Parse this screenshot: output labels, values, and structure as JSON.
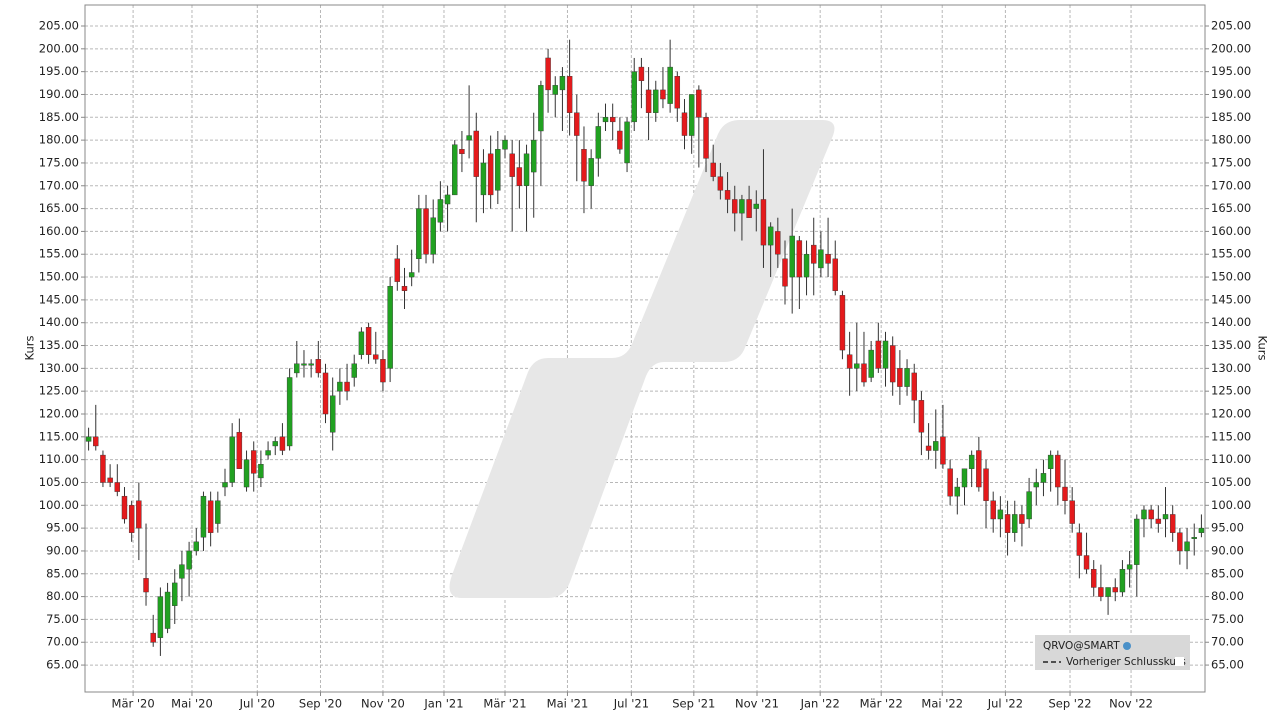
{
  "chart_data": {
    "type": "candlestick",
    "ylabel": "Kurs",
    "legend": {
      "entries": [
        "QRVO@SMART",
        "Vorheriger Schlusskurs"
      ],
      "position": "lower right"
    },
    "up_color": "#21a121",
    "down_color": "#e41a1c",
    "grid": true,
    "ylim": [
      59.1,
      209.6
    ],
    "yticks": [
      {
        "value": 65,
        "label": "65.00"
      },
      {
        "value": 70,
        "label": "70.00"
      },
      {
        "value": 75,
        "label": "75.00"
      },
      {
        "value": 80,
        "label": "80.00"
      },
      {
        "value": 85,
        "label": "85.00"
      },
      {
        "value": 90,
        "label": "90.00"
      },
      {
        "value": 95,
        "label": "95.00"
      },
      {
        "value": 100,
        "label": "100.00"
      },
      {
        "value": 105,
        "label": "105.00"
      },
      {
        "value": 110,
        "label": "110.00"
      },
      {
        "value": 115,
        "label": "115.00"
      },
      {
        "value": 120,
        "label": "120.00"
      },
      {
        "value": 125,
        "label": "125.00"
      },
      {
        "value": 130,
        "label": "130.00"
      },
      {
        "value": 135,
        "label": "135.00"
      },
      {
        "value": 140,
        "label": "140.00"
      },
      {
        "value": 145,
        "label": "145.00"
      },
      {
        "value": 150,
        "label": "150.00"
      },
      {
        "value": 155,
        "label": "155.00"
      },
      {
        "value": 160,
        "label": "160.00"
      },
      {
        "value": 165,
        "label": "165.00"
      },
      {
        "value": 170,
        "label": "170.00"
      },
      {
        "value": 175,
        "label": "175.00"
      },
      {
        "value": 180,
        "label": "180.00"
      },
      {
        "value": 185,
        "label": "185.00"
      },
      {
        "value": 190,
        "label": "190.00"
      },
      {
        "value": 195,
        "label": "195.00"
      },
      {
        "value": 200,
        "label": "200.00"
      },
      {
        "value": 205,
        "label": "205.00"
      }
    ],
    "xlim": [
      -0.5,
      155.5
    ],
    "xticks": [
      {
        "value": 6.2,
        "label": "Mär '20"
      },
      {
        "value": 14.4,
        "label": "Mai '20"
      },
      {
        "value": 23.5,
        "label": "Jul '20"
      },
      {
        "value": 32.3,
        "label": "Sep '20"
      },
      {
        "value": 41.0,
        "label": "Nov '20"
      },
      {
        "value": 49.5,
        "label": "Jan '21"
      },
      {
        "value": 58.0,
        "label": "Mär '21"
      },
      {
        "value": 66.7,
        "label": "Mai '21"
      },
      {
        "value": 75.6,
        "label": "Jul '21"
      },
      {
        "value": 84.3,
        "label": "Sep '21"
      },
      {
        "value": 93.1,
        "label": "Nov '21"
      },
      {
        "value": 101.9,
        "label": "Jan '22"
      },
      {
        "value": 110.4,
        "label": "Mär '22"
      },
      {
        "value": 118.9,
        "label": "Mai '22"
      },
      {
        "value": 127.7,
        "label": "Jul '22"
      },
      {
        "value": 136.7,
        "label": "Sep '22"
      },
      {
        "value": 145.2,
        "label": "Nov '22"
      }
    ],
    "ohlc": [
      [
        114,
        117,
        112,
        115
      ],
      [
        115,
        122,
        112,
        113
      ],
      [
        111,
        112,
        104,
        105
      ],
      [
        106,
        109,
        104,
        105
      ],
      [
        105,
        109,
        102,
        103
      ],
      [
        102,
        104,
        96,
        97
      ],
      [
        100,
        101,
        92,
        94
      ],
      [
        101,
        105,
        88,
        95
      ],
      [
        84,
        96,
        78,
        81
      ],
      [
        72,
        76,
        69,
        70
      ],
      [
        71,
        82,
        67,
        80
      ],
      [
        73,
        83,
        72,
        81
      ],
      [
        78,
        86,
        74,
        83
      ],
      [
        84,
        90,
        79,
        87
      ],
      [
        86,
        92,
        80,
        90
      ],
      [
        90,
        95,
        89,
        92
      ],
      [
        93,
        103,
        90,
        102
      ],
      [
        101,
        103,
        91,
        94
      ],
      [
        96,
        103,
        94,
        101
      ],
      [
        104,
        108,
        102,
        105
      ],
      [
        105,
        118,
        104,
        115
      ],
      [
        116,
        119,
        108,
        108
      ],
      [
        104,
        112,
        103,
        110
      ],
      [
        112,
        114,
        103,
        107
      ],
      [
        106,
        112,
        104,
        109
      ],
      [
        111,
        114,
        110,
        112
      ],
      [
        113,
        115,
        111,
        114
      ],
      [
        115,
        118,
        111,
        112
      ],
      [
        113,
        130,
        112,
        128
      ],
      [
        129,
        136,
        128,
        131
      ],
      [
        131,
        134,
        128,
        131
      ],
      [
        131,
        132,
        128,
        131
      ],
      [
        132,
        136,
        128,
        129
      ],
      [
        129,
        131,
        118,
        120
      ],
      [
        116,
        128,
        112,
        124
      ],
      [
        125,
        130,
        122,
        127
      ],
      [
        127,
        131,
        123,
        125
      ],
      [
        128,
        133,
        126,
        131
      ],
      [
        133,
        139,
        132,
        138
      ],
      [
        139,
        140,
        131,
        133
      ],
      [
        133,
        138,
        131,
        132
      ],
      [
        132,
        134,
        125,
        127
      ],
      [
        130,
        150,
        127,
        148
      ],
      [
        154,
        157,
        147,
        149
      ],
      [
        148,
        152,
        143,
        147
      ],
      [
        150,
        156,
        148,
        151
      ],
      [
        154,
        168,
        151,
        165
      ],
      [
        165,
        168,
        153,
        155
      ],
      [
        155,
        167,
        153,
        163
      ],
      [
        162,
        171,
        160,
        167
      ],
      [
        166,
        170,
        160,
        168
      ],
      [
        168,
        180,
        168,
        179
      ],
      [
        178,
        182,
        173,
        177
      ],
      [
        180,
        192,
        176,
        181
      ],
      [
        182,
        186,
        162,
        172
      ],
      [
        168,
        178,
        164,
        175
      ],
      [
        177,
        181,
        165,
        168
      ],
      [
        169,
        182,
        166,
        178
      ],
      [
        178,
        181,
        176,
        180
      ],
      [
        177,
        180,
        160,
        172
      ],
      [
        174,
        180,
        165,
        170
      ],
      [
        170,
        179,
        160,
        177
      ],
      [
        173,
        186,
        163,
        180
      ],
      [
        182,
        193,
        170,
        192
      ],
      [
        198,
        200,
        186,
        191
      ],
      [
        190,
        194,
        185,
        192
      ],
      [
        191,
        196,
        182,
        194
      ],
      [
        194,
        202,
        181,
        186
      ],
      [
        186,
        190,
        171,
        181
      ],
      [
        178,
        183,
        164,
        171
      ],
      [
        170,
        178,
        165,
        176
      ],
      [
        176,
        186,
        172,
        183
      ],
      [
        184,
        188,
        182,
        185
      ],
      [
        185,
        188,
        180,
        184
      ],
      [
        182,
        185,
        177,
        178
      ],
      [
        175,
        185,
        173,
        184
      ],
      [
        184,
        198,
        182,
        195
      ],
      [
        196,
        198,
        187,
        193
      ],
      [
        191,
        196,
        180,
        186
      ],
      [
        186,
        193,
        184,
        191
      ],
      [
        191,
        196,
        187,
        189
      ],
      [
        188,
        202,
        186,
        196
      ],
      [
        194,
        195,
        184,
        187
      ],
      [
        186,
        189,
        178,
        181
      ],
      [
        181,
        190,
        177,
        190
      ],
      [
        191,
        192,
        174,
        185
      ],
      [
        185,
        186,
        173,
        176
      ],
      [
        175,
        179,
        171,
        172
      ],
      [
        172,
        175,
        167,
        169
      ],
      [
        169,
        173,
        164,
        167
      ],
      [
        167,
        170,
        160,
        164
      ],
      [
        164,
        168,
        158,
        167
      ],
      [
        167,
        170,
        163,
        163
      ],
      [
        165,
        169,
        160,
        166
      ],
      [
        167,
        178,
        152,
        157
      ],
      [
        157,
        162,
        150,
        161
      ],
      [
        160,
        163,
        152,
        155
      ],
      [
        154,
        158,
        144,
        148
      ],
      [
        150,
        165,
        142,
        159
      ],
      [
        158,
        159,
        143,
        150
      ],
      [
        150,
        158,
        146,
        155
      ],
      [
        157,
        163,
        146,
        153
      ],
      [
        152,
        160,
        150,
        156
      ],
      [
        155,
        163,
        150,
        153
      ],
      [
        154,
        158,
        146,
        147
      ],
      [
        146,
        147,
        132,
        134
      ],
      [
        133,
        138,
        124,
        130
      ],
      [
        130,
        140,
        125,
        131
      ],
      [
        131,
        138,
        126,
        127
      ],
      [
        128,
        136,
        127,
        134
      ],
      [
        136,
        140,
        129,
        130
      ],
      [
        130,
        138,
        126,
        136
      ],
      [
        135,
        137,
        124,
        127
      ],
      [
        130,
        134,
        122,
        126
      ],
      [
        126,
        132,
        124,
        130
      ],
      [
        129,
        131,
        118,
        123
      ],
      [
        123,
        125,
        111,
        116
      ],
      [
        113,
        118,
        110,
        112
      ],
      [
        112,
        121,
        108,
        114
      ],
      [
        115,
        122,
        108,
        109
      ],
      [
        108,
        110,
        100,
        102
      ],
      [
        102,
        106,
        98,
        104
      ],
      [
        104,
        108,
        100,
        108
      ],
      [
        108,
        112,
        104,
        111
      ],
      [
        112,
        115,
        103,
        104
      ],
      [
        108,
        110,
        95,
        101
      ],
      [
        101,
        103,
        94,
        97
      ],
      [
        97,
        102,
        93,
        99
      ],
      [
        98,
        101,
        89,
        94
      ],
      [
        94,
        101,
        92,
        98
      ],
      [
        98,
        100,
        91,
        96
      ],
      [
        97,
        106,
        95,
        103
      ],
      [
        104,
        108,
        100,
        105
      ],
      [
        105,
        110,
        102,
        107
      ],
      [
        108,
        112,
        103,
        111
      ],
      [
        111,
        112,
        100,
        104
      ],
      [
        104,
        110,
        98,
        101
      ],
      [
        101,
        104,
        94,
        96
      ],
      [
        94,
        96,
        84,
        89
      ],
      [
        89,
        94,
        85,
        86
      ],
      [
        86,
        88,
        80,
        82
      ],
      [
        82,
        87,
        79,
        80
      ],
      [
        80,
        82,
        76,
        82
      ],
      [
        82,
        84,
        79,
        81
      ],
      [
        81,
        88,
        80,
        86
      ],
      [
        86,
        90,
        82,
        87
      ],
      [
        87,
        98,
        80,
        97
      ],
      [
        97,
        100,
        93,
        99
      ],
      [
        99,
        100,
        95,
        97
      ],
      [
        97,
        100,
        94,
        96
      ],
      [
        97,
        104,
        93,
        98
      ],
      [
        98,
        100,
        92,
        94
      ],
      [
        94,
        95,
        87,
        90
      ],
      [
        90,
        95,
        86,
        92
      ],
      [
        93,
        96,
        89,
        93
      ],
      [
        94,
        98,
        93,
        95
      ]
    ]
  }
}
